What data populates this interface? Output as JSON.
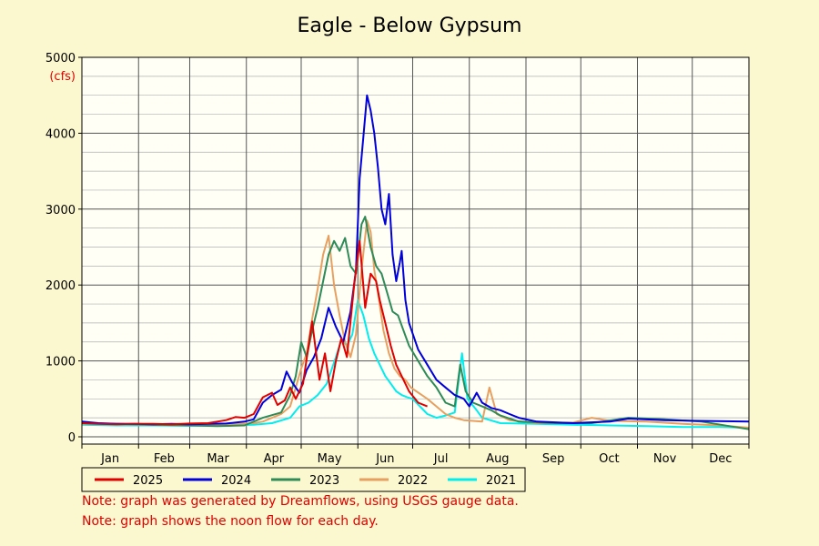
{
  "chart_data": {
    "type": "line",
    "title": "Eagle - Below Gypsum",
    "ylabel": "(cfs)",
    "xlabel": "",
    "ylim": [
      0,
      5000
    ],
    "yticks": [
      0,
      1000,
      2000,
      3000,
      4000,
      5000
    ],
    "xlim": [
      1,
      366
    ],
    "months": [
      "Jan",
      "Feb",
      "Mar",
      "Apr",
      "May",
      "Jun",
      "Jul",
      "Aug",
      "Sep",
      "Oct",
      "Nov",
      "Dec"
    ],
    "month_starts": [
      1,
      32,
      60,
      91,
      121,
      152,
      182,
      213,
      244,
      274,
      305,
      335
    ],
    "grid": true,
    "legend_position": "bottom",
    "x_unit": "day of year",
    "series": [
      {
        "name": "2025",
        "color": "#e00000",
        "points": [
          [
            1,
            180
          ],
          [
            10,
            170
          ],
          [
            20,
            165
          ],
          [
            30,
            170
          ],
          [
            40,
            170
          ],
          [
            50,
            165
          ],
          [
            60,
            175
          ],
          [
            70,
            180
          ],
          [
            80,
            220
          ],
          [
            85,
            260
          ],
          [
            90,
            250
          ],
          [
            95,
            300
          ],
          [
            100,
            520
          ],
          [
            105,
            580
          ],
          [
            108,
            420
          ],
          [
            112,
            480
          ],
          [
            115,
            650
          ],
          [
            118,
            500
          ],
          [
            122,
            700
          ],
          [
            127,
            1520
          ],
          [
            131,
            750
          ],
          [
            134,
            1100
          ],
          [
            137,
            600
          ],
          [
            140,
            1000
          ],
          [
            143,
            1300
          ],
          [
            146,
            1050
          ],
          [
            150,
            2000
          ],
          [
            153,
            2580
          ],
          [
            156,
            1700
          ],
          [
            159,
            2150
          ],
          [
            162,
            2050
          ],
          [
            164,
            1800
          ],
          [
            167,
            1500
          ],
          [
            170,
            1200
          ],
          [
            173,
            950
          ],
          [
            176,
            800
          ],
          [
            180,
            600
          ],
          [
            185,
            450
          ],
          [
            190,
            400
          ]
        ]
      },
      {
        "name": "2024",
        "color": "#0000dd",
        "points": [
          [
            1,
            200
          ],
          [
            10,
            180
          ],
          [
            20,
            170
          ],
          [
            30,
            170
          ],
          [
            40,
            165
          ],
          [
            50,
            170
          ],
          [
            60,
            165
          ],
          [
            70,
            170
          ],
          [
            80,
            175
          ],
          [
            90,
            200
          ],
          [
            95,
            230
          ],
          [
            100,
            450
          ],
          [
            105,
            550
          ],
          [
            110,
            620
          ],
          [
            113,
            860
          ],
          [
            116,
            720
          ],
          [
            120,
            580
          ],
          [
            124,
            880
          ],
          [
            128,
            1050
          ],
          [
            132,
            1300
          ],
          [
            136,
            1700
          ],
          [
            140,
            1450
          ],
          [
            144,
            1250
          ],
          [
            148,
            1650
          ],
          [
            151,
            2200
          ],
          [
            153,
            3400
          ],
          [
            155,
            3950
          ],
          [
            157,
            4500
          ],
          [
            159,
            4300
          ],
          [
            161,
            4000
          ],
          [
            163,
            3550
          ],
          [
            165,
            3000
          ],
          [
            167,
            2800
          ],
          [
            169,
            3200
          ],
          [
            171,
            2400
          ],
          [
            173,
            2050
          ],
          [
            175,
            2300
          ],
          [
            176,
            2450
          ],
          [
            178,
            1800
          ],
          [
            180,
            1500
          ],
          [
            185,
            1150
          ],
          [
            190,
            950
          ],
          [
            195,
            750
          ],
          [
            200,
            650
          ],
          [
            205,
            550
          ],
          [
            210,
            500
          ],
          [
            213,
            400
          ],
          [
            217,
            580
          ],
          [
            220,
            450
          ],
          [
            225,
            380
          ],
          [
            230,
            350
          ],
          [
            235,
            300
          ],
          [
            240,
            250
          ],
          [
            250,
            200
          ],
          [
            270,
            180
          ],
          [
            290,
            200
          ],
          [
            300,
            240
          ],
          [
            320,
            220
          ],
          [
            340,
            210
          ],
          [
            366,
            200
          ]
        ]
      },
      {
        "name": "2023",
        "color": "#2e8b57",
        "points": [
          [
            1,
            180
          ],
          [
            20,
            170
          ],
          [
            40,
            160
          ],
          [
            60,
            150
          ],
          [
            75,
            140
          ],
          [
            90,
            150
          ],
          [
            100,
            250
          ],
          [
            110,
            320
          ],
          [
            115,
            550
          ],
          [
            118,
            800
          ],
          [
            121,
            1250
          ],
          [
            124,
            1050
          ],
          [
            127,
            1400
          ],
          [
            130,
            1700
          ],
          [
            133,
            2050
          ],
          [
            136,
            2400
          ],
          [
            139,
            2580
          ],
          [
            142,
            2450
          ],
          [
            145,
            2620
          ],
          [
            148,
            2250
          ],
          [
            151,
            2150
          ],
          [
            154,
            2800
          ],
          [
            156,
            2900
          ],
          [
            159,
            2500
          ],
          [
            162,
            2250
          ],
          [
            165,
            2150
          ],
          [
            168,
            1900
          ],
          [
            171,
            1650
          ],
          [
            174,
            1600
          ],
          [
            177,
            1400
          ],
          [
            180,
            1200
          ],
          [
            185,
            1000
          ],
          [
            190,
            800
          ],
          [
            195,
            650
          ],
          [
            200,
            450
          ],
          [
            205,
            400
          ],
          [
            208,
            950
          ],
          [
            211,
            600
          ],
          [
            215,
            450
          ],
          [
            220,
            400
          ],
          [
            225,
            350
          ],
          [
            230,
            280
          ],
          [
            240,
            200
          ],
          [
            260,
            180
          ],
          [
            280,
            180
          ],
          [
            300,
            250
          ],
          [
            320,
            230
          ],
          [
            340,
            200
          ],
          [
            366,
            100
          ]
        ]
      },
      {
        "name": "2022",
        "color": "#e8a060",
        "points": [
          [
            1,
            170
          ],
          [
            20,
            170
          ],
          [
            40,
            165
          ],
          [
            60,
            160
          ],
          [
            80,
            160
          ],
          [
            95,
            180
          ],
          [
            100,
            200
          ],
          [
            110,
            300
          ],
          [
            115,
            400
          ],
          [
            118,
            650
          ],
          [
            121,
            900
          ],
          [
            124,
            1100
          ],
          [
            127,
            1550
          ],
          [
            130,
            1950
          ],
          [
            133,
            2400
          ],
          [
            136,
            2650
          ],
          [
            139,
            2000
          ],
          [
            142,
            1600
          ],
          [
            145,
            1250
          ],
          [
            148,
            1050
          ],
          [
            151,
            1350
          ],
          [
            154,
            2200
          ],
          [
            157,
            2850
          ],
          [
            159,
            2700
          ],
          [
            161,
            2200
          ],
          [
            163,
            1900
          ],
          [
            166,
            1400
          ],
          [
            169,
            1100
          ],
          [
            172,
            900
          ],
          [
            175,
            800
          ],
          [
            178,
            750
          ],
          [
            181,
            650
          ],
          [
            184,
            600
          ],
          [
            187,
            550
          ],
          [
            190,
            500
          ],
          [
            195,
            400
          ],
          [
            200,
            300
          ],
          [
            205,
            250
          ],
          [
            210,
            220
          ],
          [
            220,
            200
          ],
          [
            224,
            650
          ],
          [
            228,
            300
          ],
          [
            235,
            220
          ],
          [
            250,
            180
          ],
          [
            270,
            190
          ],
          [
            280,
            250
          ],
          [
            290,
            210
          ],
          [
            310,
            200
          ],
          [
            330,
            170
          ],
          [
            350,
            150
          ],
          [
            366,
            120
          ]
        ]
      },
      {
        "name": "2021",
        "color": "#00eeee",
        "points": [
          [
            1,
            160
          ],
          [
            20,
            150
          ],
          [
            40,
            150
          ],
          [
            60,
            145
          ],
          [
            80,
            150
          ],
          [
            95,
            160
          ],
          [
            105,
            180
          ],
          [
            115,
            250
          ],
          [
            120,
            400
          ],
          [
            125,
            450
          ],
          [
            130,
            550
          ],
          [
            135,
            700
          ],
          [
            140,
            1050
          ],
          [
            143,
            1280
          ],
          [
            146,
            1200
          ],
          [
            149,
            1350
          ],
          [
            152,
            1800
          ],
          [
            155,
            1600
          ],
          [
            158,
            1300
          ],
          [
            161,
            1100
          ],
          [
            164,
            950
          ],
          [
            167,
            800
          ],
          [
            170,
            700
          ],
          [
            173,
            600
          ],
          [
            176,
            550
          ],
          [
            179,
            520
          ],
          [
            182,
            500
          ],
          [
            186,
            400
          ],
          [
            190,
            300
          ],
          [
            195,
            250
          ],
          [
            200,
            280
          ],
          [
            205,
            320
          ],
          [
            209,
            1100
          ],
          [
            212,
            500
          ],
          [
            217,
            350
          ],
          [
            220,
            250
          ],
          [
            230,
            180
          ],
          [
            250,
            170
          ],
          [
            270,
            160
          ],
          [
            290,
            150
          ],
          [
            310,
            140
          ],
          [
            330,
            130
          ],
          [
            350,
            130
          ],
          [
            366,
            120
          ]
        ]
      }
    ]
  },
  "notes": [
    "Note: graph was generated by Dreamflows, using USGS gauge data.",
    "Note: graph shows the noon flow for each day."
  ]
}
